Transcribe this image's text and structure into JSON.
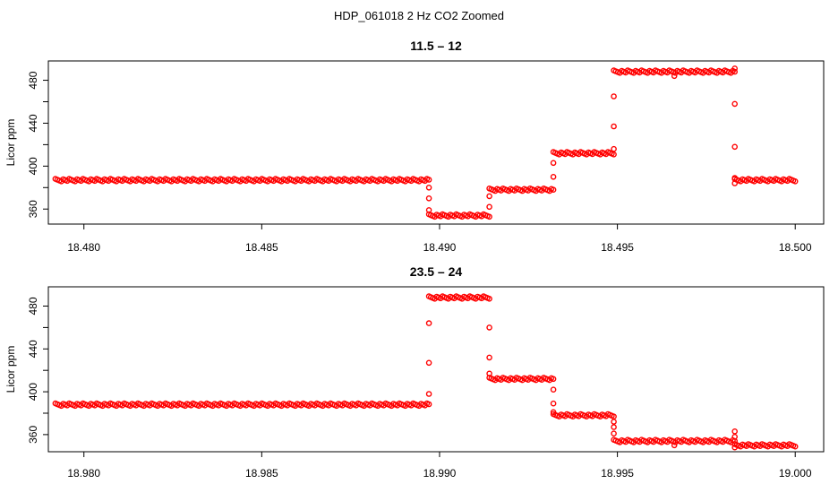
{
  "figure": {
    "title": "HDP_061018  2 Hz CO2 Zoomed"
  },
  "colors": {
    "marker": "#ff0000",
    "axis": "#000000",
    "background": "#ffffff"
  },
  "chart_data": [
    {
      "type": "scatter",
      "title": "11.5 – 12",
      "xlabel": "",
      "ylabel": "Licor ppm",
      "xlim": [
        18.479,
        18.5008
      ],
      "ylim": [
        346,
        498
      ],
      "xticks": [
        18.48,
        18.485,
        18.49,
        18.495,
        18.5
      ],
      "xtick_labels": [
        "18.480",
        "18.485",
        "18.490",
        "18.495",
        "18.500"
      ],
      "yticks": [
        360,
        380,
        400,
        420,
        440,
        460,
        480
      ],
      "ytick_labels": [
        "360",
        "",
        "400",
        "",
        "440",
        "",
        "480"
      ],
      "grid": false,
      "segments": [
        {
          "x_start": 18.4792,
          "x_end": 18.4897,
          "y": 387
        },
        {
          "x_start": 18.4897,
          "x_end": 18.4914,
          "y": 354
        },
        {
          "x_start": 18.4914,
          "x_end": 18.4932,
          "y": 378
        },
        {
          "x_start": 18.4932,
          "x_end": 18.4949,
          "y": 412
        },
        {
          "x_start": 18.4949,
          "x_end": 18.4983,
          "y": 488
        },
        {
          "x_start": 18.4983,
          "x_end": 18.5,
          "y": 387
        }
      ],
      "transition_points": [
        {
          "x": 18.4897,
          "y": 380
        },
        {
          "x": 18.4897,
          "y": 370
        },
        {
          "x": 18.4897,
          "y": 359
        },
        {
          "x": 18.4914,
          "y": 362
        },
        {
          "x": 18.4914,
          "y": 372
        },
        {
          "x": 18.4932,
          "y": 390
        },
        {
          "x": 18.4932,
          "y": 403
        },
        {
          "x": 18.4949,
          "y": 416
        },
        {
          "x": 18.4949,
          "y": 437
        },
        {
          "x": 18.4949,
          "y": 465
        },
        {
          "x": 18.4983,
          "y": 458
        },
        {
          "x": 18.4983,
          "y": 418
        },
        {
          "x": 18.4983,
          "y": 389
        },
        {
          "x": 18.4983,
          "y": 384
        },
        {
          "x": 18.4983,
          "y": 491
        },
        {
          "x": 18.4966,
          "y": 484
        }
      ]
    },
    {
      "type": "scatter",
      "title": "23.5 – 24",
      "xlabel": "",
      "ylabel": "Licor ppm",
      "xlim": [
        18.979,
        19.0008
      ],
      "ylim": [
        344,
        498
      ],
      "xticks": [
        18.98,
        18.985,
        18.99,
        18.995,
        19.0
      ],
      "xtick_labels": [
        "18.980",
        "18.985",
        "18.990",
        "18.995",
        "19.000"
      ],
      "yticks": [
        360,
        380,
        400,
        420,
        440,
        460,
        480
      ],
      "ytick_labels": [
        "360",
        "",
        "400",
        "",
        "440",
        "",
        "480"
      ],
      "grid": false,
      "segments": [
        {
          "x_start": 18.9792,
          "x_end": 18.9897,
          "y": 388
        },
        {
          "x_start": 18.9897,
          "x_end": 18.9914,
          "y": 488
        },
        {
          "x_start": 18.9914,
          "x_end": 18.9932,
          "y": 412
        },
        {
          "x_start": 18.9932,
          "x_end": 18.9949,
          "y": 378
        },
        {
          "x_start": 18.9949,
          "x_end": 18.9983,
          "y": 354
        },
        {
          "x_start": 18.9983,
          "x_end": 19.0,
          "y": 350
        }
      ],
      "transition_points": [
        {
          "x": 18.9897,
          "y": 398
        },
        {
          "x": 18.9897,
          "y": 427
        },
        {
          "x": 18.9897,
          "y": 464
        },
        {
          "x": 18.9914,
          "y": 460
        },
        {
          "x": 18.9914,
          "y": 432
        },
        {
          "x": 18.9914,
          "y": 417
        },
        {
          "x": 18.9932,
          "y": 402
        },
        {
          "x": 18.9932,
          "y": 389
        },
        {
          "x": 18.9932,
          "y": 381
        },
        {
          "x": 18.9949,
          "y": 372
        },
        {
          "x": 18.9949,
          "y": 367
        },
        {
          "x": 18.9949,
          "y": 361
        },
        {
          "x": 18.9983,
          "y": 363
        },
        {
          "x": 18.9983,
          "y": 358
        },
        {
          "x": 18.9983,
          "y": 348
        },
        {
          "x": 18.9966,
          "y": 350
        }
      ]
    }
  ]
}
